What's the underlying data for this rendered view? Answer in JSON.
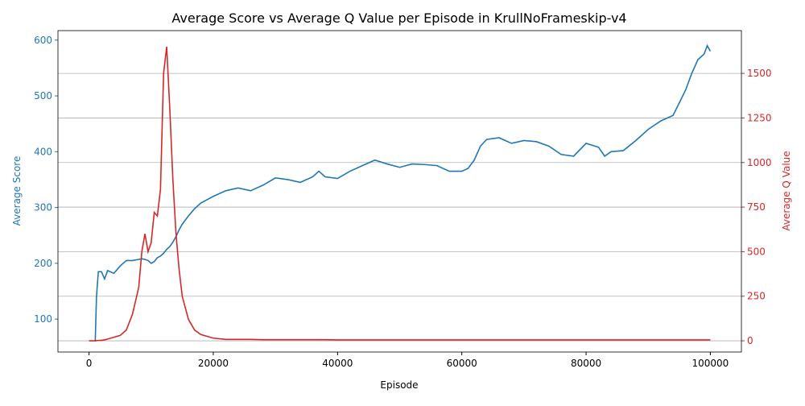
{
  "chart_data": {
    "type": "line",
    "title": "Average Score vs Average Q Value per Episode in KrullNoFrameskip-v4",
    "xlabel": "Episode",
    "ylabel": "Average Score",
    "y2label": "Average Q Value",
    "x": [
      0,
      1000,
      1200,
      1500,
      2000,
      2500,
      3000,
      4000,
      5000,
      6000,
      7000,
      8000,
      8500,
      9000,
      9500,
      10000,
      10500,
      11000,
      11500,
      12000,
      12500,
      13000,
      13500,
      14000,
      14500,
      15000,
      16000,
      17000,
      18000,
      20000,
      22000,
      24000,
      26000,
      28000,
      30000,
      32000,
      34000,
      36000,
      37000,
      38000,
      40000,
      42000,
      44000,
      46000,
      48000,
      50000,
      52000,
      54000,
      56000,
      58000,
      60000,
      61000,
      62000,
      63000,
      64000,
      66000,
      68000,
      70000,
      72000,
      74000,
      76000,
      78000,
      80000,
      82000,
      83000,
      84000,
      86000,
      88000,
      90000,
      92000,
      94000,
      96000,
      97000,
      98000,
      99000,
      99500,
      100000
    ],
    "series": [
      {
        "name": "Average Score",
        "color": "#1f77b4",
        "values": [
          null,
          60,
          140,
          185,
          185,
          172,
          187,
          182,
          195,
          205,
          205,
          207,
          208,
          207,
          205,
          200,
          203,
          210,
          213,
          218,
          225,
          230,
          238,
          248,
          260,
          270,
          285,
          298,
          308,
          320,
          330,
          335,
          330,
          340,
          353,
          350,
          345,
          355,
          365,
          355,
          352,
          365,
          375,
          385,
          378,
          372,
          378,
          377,
          375,
          365,
          365,
          370,
          385,
          410,
          422,
          425,
          415,
          420,
          418,
          410,
          395,
          392,
          415,
          408,
          392,
          400,
          402,
          420,
          440,
          455,
          465,
          510,
          540,
          565,
          575,
          590,
          580
        ]
      },
      {
        "name": "Average Q Value",
        "color": "#d62728",
        "axis": "y2",
        "values": [
          0,
          0,
          1,
          2,
          3,
          5,
          10,
          20,
          30,
          60,
          150,
          300,
          500,
          600,
          500,
          550,
          720,
          700,
          850,
          1500,
          1650,
          1300,
          900,
          600,
          400,
          250,
          120,
          60,
          35,
          15,
          8,
          8,
          8,
          6,
          6,
          6,
          6,
          6,
          6,
          6,
          5,
          5,
          5,
          5,
          5,
          5,
          5,
          5,
          5,
          5,
          5,
          5,
          5,
          5,
          5,
          5,
          5,
          5,
          5,
          5,
          5,
          5,
          5,
          5,
          5,
          5,
          5,
          5,
          5,
          5,
          5,
          5,
          5,
          5,
          5,
          5,
          5
        ]
      }
    ],
    "xlim": [
      -5000,
      105000
    ],
    "xticks": [
      0,
      20000,
      40000,
      60000,
      80000,
      100000
    ],
    "ylim": [
      41,
      617
    ],
    "yticks": [
      100,
      200,
      300,
      400,
      500,
      600
    ],
    "y2lim": [
      -63,
      1740
    ],
    "y2ticks": [
      0,
      250,
      500,
      750,
      1000,
      1250,
      1500
    ],
    "grid": true
  }
}
